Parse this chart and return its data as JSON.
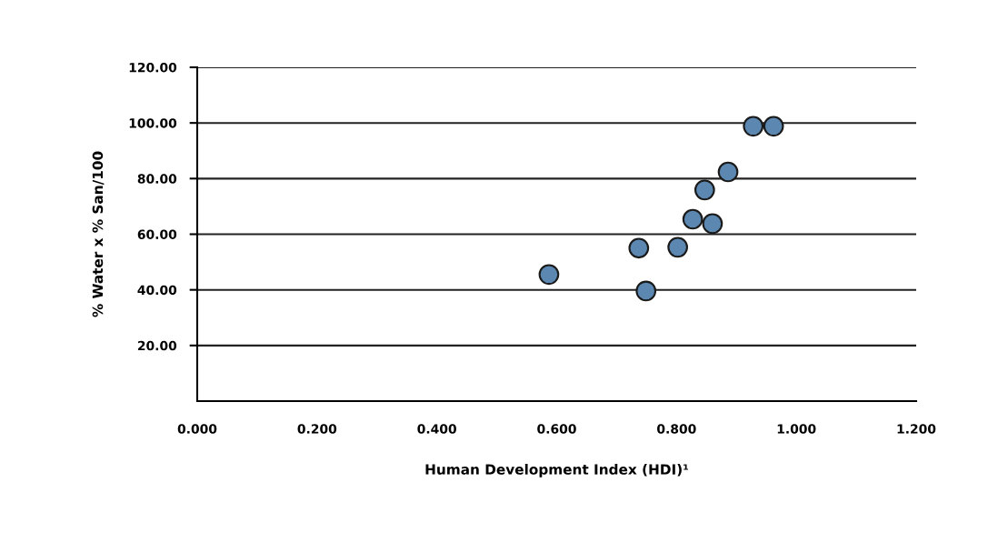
{
  "chart_data": {
    "type": "scatter",
    "xlabel": "Human Development Index (HDI)¹",
    "ylabel": "% Water x % San/100",
    "x": [
      0.587,
      0.737,
      0.749,
      0.802,
      0.827,
      0.847,
      0.86,
      0.886,
      0.928,
      0.962
    ],
    "series": [
      {
        "color": "#5b87b0",
        "values": [
          45.5,
          55,
          39.6,
          55.3,
          65.4,
          75.9,
          63.8,
          82.4,
          98.8,
          98.8
        ]
      }
    ],
    "marker": "circle",
    "grid": "y",
    "legend": false,
    "xlim": [
      0,
      1.2
    ],
    "ylim": [
      0,
      120
    ],
    "xticks": [
      {
        "value": 0,
        "label": "0.000"
      },
      {
        "value": 0.2,
        "label": "0.200"
      },
      {
        "value": 0.4,
        "label": "0.400"
      },
      {
        "value": 0.6,
        "label": "0.600"
      },
      {
        "value": 0.8,
        "label": "0.800"
      },
      {
        "value": 1.0,
        "label": "1.000"
      },
      {
        "value": 1.2,
        "label": "1.200"
      }
    ],
    "yticks": [
      {
        "value": 20,
        "label": "20.00"
      },
      {
        "value": 40,
        "label": "40.00"
      },
      {
        "value": 60,
        "label": "60.00"
      },
      {
        "value": 80,
        "label": "80.00"
      },
      {
        "value": 100,
        "label": "100.00"
      },
      {
        "value": 120,
        "label": "120.00"
      }
    ]
  }
}
